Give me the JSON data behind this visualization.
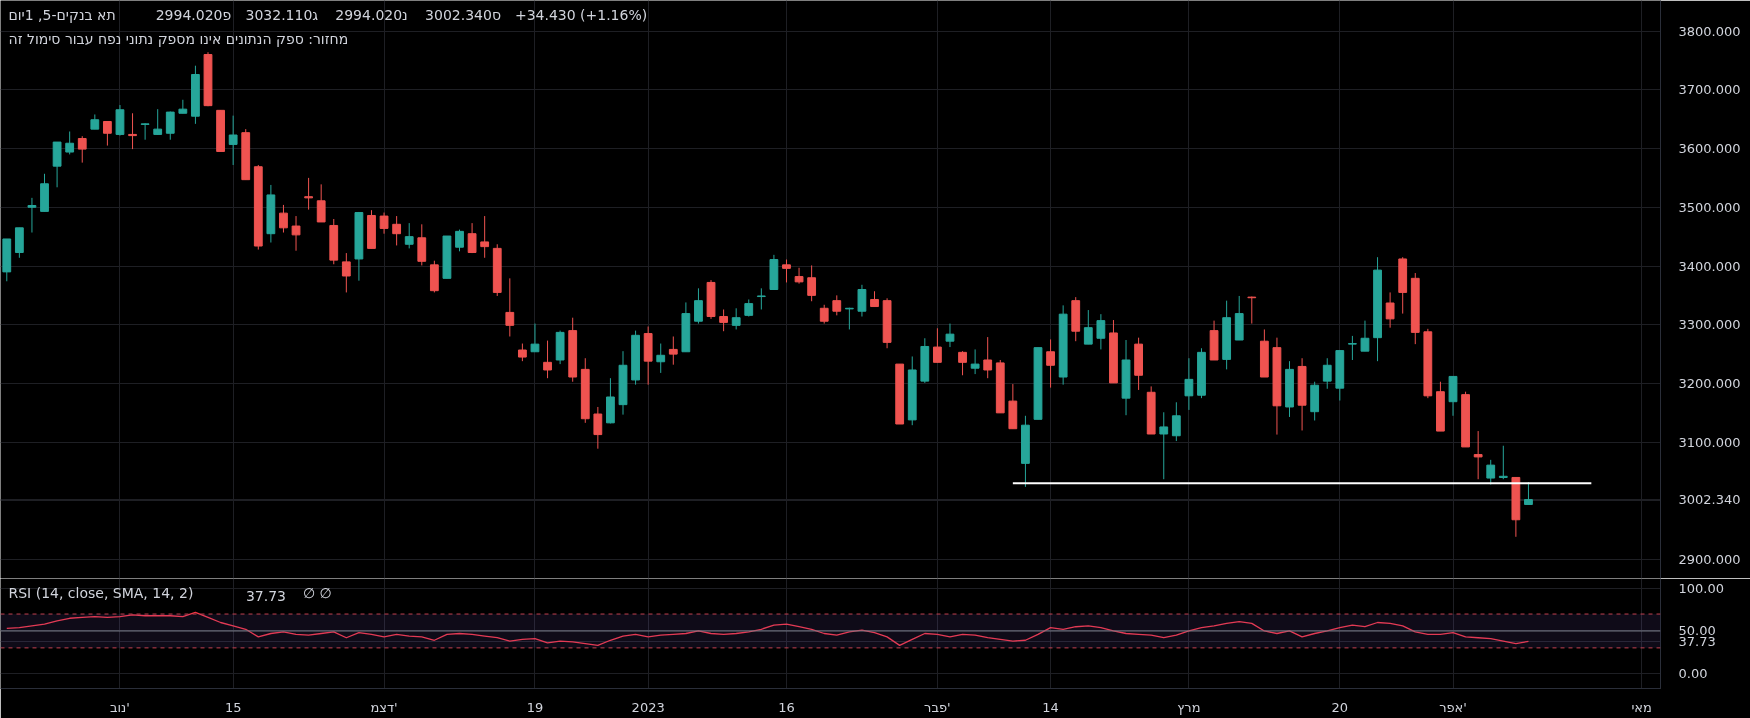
{
  "chart_data": [
    {
      "type": "candlestick",
      "title": "תא בנקים-5, 1יום",
      "annotations": [
        "פ2994.020",
        "ג3032.110",
        "נ2994.020",
        "ס3002.340",
        "+34.430 (+1.16%)",
        "מחזור: ספק הנתונים אינו מספק נתוני נפח עבור סימול זה"
      ],
      "categories": [
        null,
        null,
        null,
        null,
        null,
        null,
        null,
        null,
        null,
        null,
        null,
        null,
        null,
        null,
        null,
        null,
        null,
        null,
        null,
        null,
        null,
        null,
        null,
        null,
        null,
        null,
        null,
        null,
        null,
        null,
        null,
        null,
        null,
        null,
        null,
        null,
        null,
        null,
        null,
        null,
        null,
        null,
        null,
        null,
        null,
        null,
        null,
        null,
        null,
        null,
        null,
        null,
        null,
        null,
        null,
        null,
        null,
        null,
        null,
        null,
        null,
        null,
        null,
        null,
        null,
        null,
        null,
        null,
        null,
        null,
        null,
        null,
        null,
        null,
        null,
        null,
        null,
        null,
        null,
        null,
        null,
        null,
        null,
        null,
        null,
        null,
        null,
        null,
        null,
        null,
        null,
        null,
        null,
        null,
        null,
        null,
        null,
        null,
        null,
        null,
        null,
        null,
        null,
        null,
        null,
        null,
        null,
        null,
        null,
        null,
        null,
        null,
        null,
        null,
        null,
        null,
        null,
        null,
        null,
        null,
        null,
        null,
        null,
        null,
        null,
        null,
        null,
        null,
        null,
        null,
        null,
        null
      ],
      "ohlc": [
        [
          3390,
          3446,
          3374,
          3446
        ],
        [
          3423,
          3465,
          3414,
          3465
        ],
        [
          3500,
          3516,
          3457,
          3503
        ],
        [
          3493,
          3557,
          3493,
          3540
        ],
        [
          3570,
          3611,
          3534,
          3611
        ],
        [
          3594,
          3629,
          3590,
          3609
        ],
        [
          3617,
          3621,
          3576,
          3599
        ],
        [
          3633,
          3658,
          3633,
          3649
        ],
        [
          3646,
          3646,
          3605,
          3626
        ],
        [
          3624,
          3674,
          3622,
          3666
        ],
        [
          3624,
          3660,
          3599,
          3622
        ],
        [
          3641,
          3643,
          3615,
          3642
        ],
        [
          3624,
          3667,
          3623,
          3633
        ],
        [
          3626,
          3663,
          3615,
          3662
        ],
        [
          3660,
          3683,
          3660,
          3667
        ],
        [
          3655,
          3741,
          3642,
          3726
        ],
        [
          3760,
          3764,
          3672,
          3673
        ],
        [
          3665,
          3665,
          3595,
          3595
        ],
        [
          3607,
          3656,
          3572,
          3623
        ],
        [
          3627,
          3633,
          3547,
          3547
        ],
        [
          3569,
          3572,
          3428,
          3434
        ],
        [
          3455,
          3538,
          3440,
          3521
        ],
        [
          3490,
          3504,
          3457,
          3465
        ],
        [
          3468,
          3485,
          3426,
          3453
        ],
        [
          3518,
          3550,
          3496,
          3516
        ],
        [
          3511,
          3539,
          3475,
          3475
        ],
        [
          3469,
          3480,
          3403,
          3410
        ],
        [
          3407,
          3422,
          3355,
          3383
        ],
        [
          3412,
          3492,
          3375,
          3491
        ],
        [
          3486,
          3495,
          3430,
          3430
        ],
        [
          3485,
          3491,
          3455,
          3464
        ],
        [
          3471,
          3485,
          3435,
          3455
        ],
        [
          3437,
          3473,
          3430,
          3450
        ],
        [
          3448,
          3471,
          3401,
          3408
        ],
        [
          3402,
          3409,
          3355,
          3358
        ],
        [
          3379,
          3451,
          3379,
          3451
        ],
        [
          3432,
          3462,
          3425,
          3459
        ],
        [
          3455,
          3473,
          3422,
          3423
        ],
        [
          3441,
          3485,
          3414,
          3433
        ],
        [
          3430,
          3437,
          3349,
          3355
        ],
        [
          3321,
          3379,
          3280,
          3299
        ],
        [
          3257,
          3268,
          3238,
          3245
        ],
        [
          3254,
          3302,
          3254,
          3267
        ],
        [
          3236,
          3273,
          3209,
          3223
        ],
        [
          3240,
          3290,
          3233,
          3287
        ],
        [
          3290,
          3312,
          3203,
          3211
        ],
        [
          3224,
          3243,
          3133,
          3140
        ],
        [
          3148,
          3160,
          3089,
          3113
        ],
        [
          3133,
          3209,
          3132,
          3177
        ],
        [
          3164,
          3255,
          3147,
          3231
        ],
        [
          3206,
          3290,
          3198,
          3282
        ],
        [
          3285,
          3297,
          3198,
          3238
        ],
        [
          3237,
          3268,
          3218,
          3248
        ],
        [
          3258,
          3280,
          3232,
          3250
        ],
        [
          3254,
          3338,
          3254,
          3319
        ],
        [
          3306,
          3362,
          3302,
          3341
        ],
        [
          3372,
          3376,
          3310,
          3314
        ],
        [
          3314,
          3326,
          3289,
          3304
        ],
        [
          3299,
          3328,
          3292,
          3312
        ],
        [
          3316,
          3343,
          3314,
          3336
        ],
        [
          3348,
          3362,
          3326,
          3349
        ],
        [
          3360,
          3419,
          3360,
          3411
        ],
        [
          3402,
          3411,
          3372,
          3396
        ],
        [
          3382,
          3397,
          3370,
          3373
        ],
        [
          3380,
          3401,
          3340,
          3350
        ],
        [
          3328,
          3334,
          3302,
          3306
        ],
        [
          3341,
          3350,
          3316,
          3323
        ],
        [
          3327,
          3329,
          3292,
          3328
        ],
        [
          3323,
          3368,
          3314,
          3360
        ],
        [
          3343,
          3357,
          3331,
          3331
        ],
        [
          3341,
          3345,
          3260,
          3270
        ],
        [
          3233,
          3233,
          3131,
          3131
        ],
        [
          3138,
          3246,
          3129,
          3223
        ],
        [
          3204,
          3277,
          3201,
          3263
        ],
        [
          3262,
          3294,
          3236,
          3236
        ],
        [
          3272,
          3302,
          3262,
          3284
        ],
        [
          3253,
          3255,
          3214,
          3236
        ],
        [
          3226,
          3258,
          3216,
          3233
        ],
        [
          3240,
          3279,
          3209,
          3223
        ],
        [
          3235,
          3240,
          3150,
          3150
        ],
        [
          3170,
          3199,
          3123,
          3123
        ],
        [
          3064,
          3145,
          3024,
          3129
        ],
        [
          3139,
          3261,
          3139,
          3261
        ],
        [
          3254,
          3275,
          3193,
          3231
        ],
        [
          3211,
          3333,
          3198,
          3318
        ],
        [
          3341,
          3347,
          3272,
          3289
        ],
        [
          3267,
          3325,
          3267,
          3295
        ],
        [
          3277,
          3318,
          3258,
          3307
        ],
        [
          3286,
          3308,
          3201,
          3201
        ],
        [
          3175,
          3274,
          3146,
          3240
        ],
        [
          3267,
          3278,
          3189,
          3214
        ],
        [
          3185,
          3195,
          3114,
          3114
        ],
        [
          3114,
          3151,
          3037,
          3126
        ],
        [
          3111,
          3168,
          3102,
          3145
        ],
        [
          3179,
          3243,
          3155,
          3207
        ],
        [
          3180,
          3260,
          3175,
          3253
        ],
        [
          3290,
          3307,
          3240,
          3240
        ],
        [
          3241,
          3341,
          3224,
          3312
        ],
        [
          3274,
          3349,
          3274,
          3319
        ],
        [
          3347,
          3348,
          3302,
          3346
        ],
        [
          3272,
          3292,
          3211,
          3211
        ],
        [
          3261,
          3278,
          3113,
          3162
        ],
        [
          3160,
          3238,
          3143,
          3224
        ],
        [
          3229,
          3243,
          3120,
          3163
        ],
        [
          3152,
          3203,
          3137,
          3197
        ],
        [
          3204,
          3243,
          3191,
          3231
        ],
        [
          3192,
          3256,
          3171,
          3256
        ],
        [
          3267,
          3281,
          3240,
          3268
        ],
        [
          3255,
          3307,
          3255,
          3277
        ],
        [
          3278,
          3415,
          3238,
          3393
        ],
        [
          3337,
          3355,
          3295,
          3310
        ],
        [
          3412,
          3415,
          3319,
          3355
        ],
        [
          3379,
          3388,
          3267,
          3287
        ],
        [
          3288,
          3293,
          3175,
          3179
        ],
        [
          3186,
          3203,
          3119,
          3119
        ],
        [
          3169,
          3212,
          3145,
          3212
        ],
        [
          3181,
          3186,
          3092,
          3092
        ],
        [
          3079,
          3119,
          3037,
          3075
        ],
        [
          3039,
          3070,
          3028,
          3061
        ],
        [
          3040,
          3094,
          3037,
          3042
        ],
        [
          3040,
          3040,
          2939,
          2968
        ],
        [
          2994.02,
          3032.11,
          2994.02,
          3002.34
        ],
        null,
        null,
        null,
        null,
        null,
        null,
        null,
        null,
        null,
        null
      ],
      "colors": [
        "#26a69a",
        "#26a69a",
        "#26a69a",
        "#26a69a",
        "#26a69a",
        "#26a69a",
        "#ef5350",
        "#26a69a",
        "#ef5350",
        "#26a69a",
        "#ef5350",
        "#26a69a",
        "#26a69a",
        "#26a69a",
        "#26a69a",
        "#26a69a",
        "#ef5350",
        "#ef5350",
        "#26a69a",
        "#ef5350",
        "#ef5350",
        "#26a69a",
        "#ef5350",
        "#ef5350",
        "#ef5350",
        "#ef5350",
        "#ef5350",
        "#ef5350",
        "#26a69a",
        "#ef5350",
        "#ef5350",
        "#ef5350",
        "#26a69a",
        "#ef5350",
        "#ef5350",
        "#26a69a",
        "#26a69a",
        "#ef5350",
        "#ef5350",
        "#ef5350",
        "#ef5350",
        "#ef5350",
        "#26a69a",
        "#ef5350",
        "#26a69a",
        "#ef5350",
        "#ef5350",
        "#ef5350",
        "#26a69a",
        "#26a69a",
        "#26a69a",
        "#ef5350",
        "#26a69a",
        "#ef5350",
        "#26a69a",
        "#26a69a",
        "#ef5350",
        "#ef5350",
        "#26a69a",
        "#26a69a",
        "#26a69a",
        "#26a69a",
        "#ef5350",
        "#ef5350",
        "#ef5350",
        "#ef5350",
        "#ef5350",
        "#26a69a",
        "#26a69a",
        "#ef5350",
        "#ef5350",
        "#ef5350",
        "#26a69a",
        "#26a69a",
        "#ef5350",
        "#26a69a",
        "#ef5350",
        "#26a69a",
        "#ef5350",
        "#ef5350",
        "#ef5350",
        "#26a69a",
        "#26a69a",
        "#ef5350",
        "#26a69a",
        "#ef5350",
        "#26a69a",
        "#26a69a",
        "#ef5350",
        "#26a69a",
        "#ef5350",
        "#ef5350",
        "#26a69a",
        "#26a69a",
        "#26a69a",
        "#26a69a",
        "#ef5350",
        "#26a69a",
        "#26a69a",
        "#ef5350",
        "#ef5350",
        "#ef5350",
        "#26a69a",
        "#ef5350",
        "#26a69a",
        "#26a69a",
        "#26a69a",
        "#26a69a",
        "#26a69a",
        "#26a69a",
        "#ef5350",
        "#ef5350",
        "#ef5350",
        "#ef5350",
        "#ef5350",
        "#26a69a",
        "#ef5350",
        "#ef5350",
        "#26a69a",
        "#26a69a",
        "#ef5350",
        "#26a69a",
        null,
        null,
        null,
        null,
        null,
        null,
        null,
        null,
        null,
        null
      ],
      "series": [
        {
          "type": "line",
          "color": "#ffffff",
          "values": [
            null,
            null,
            null,
            null,
            null,
            null,
            null,
            null,
            null,
            null,
            null,
            null,
            null,
            null,
            null,
            null,
            null,
            null,
            null,
            null,
            null,
            null,
            null,
            null,
            null,
            null,
            null,
            null,
            null,
            null,
            null,
            null,
            null,
            null,
            null,
            null,
            null,
            null,
            null,
            null,
            null,
            null,
            null,
            null,
            null,
            null,
            null,
            null,
            null,
            null,
            null,
            null,
            null,
            null,
            null,
            null,
            null,
            null,
            null,
            null,
            null,
            null,
            null,
            null,
            null,
            null,
            null,
            null,
            null,
            null,
            null,
            null,
            null,
            null,
            null,
            null,
            null,
            null,
            null,
            null,
            3030,
            3030,
            3030,
            3030,
            3030,
            3030,
            3030,
            3030,
            3030,
            3030,
            3030,
            3030,
            3030,
            3030,
            3030,
            3030,
            3030,
            3030,
            3030,
            3030,
            3030,
            3030,
            3030,
            3030,
            3030,
            3030,
            3030,
            3030,
            3030,
            3030,
            3030,
            3030,
            3030,
            3030,
            3030,
            3030,
            3030,
            3030,
            3030,
            3030,
            3030,
            3030,
            3030,
            3030,
            3030,
            3030,
            3030,
            null,
            null,
            null,
            null,
            null
          ]
        }
      ],
      "ylim": [
        2868,
        3852
      ],
      "yticks": [
        {
          "value": 2900,
          "label": "2900.000"
        },
        {
          "value": 3000,
          "label": null
        },
        {
          "value": 3002.34,
          "label": "3002.340"
        },
        {
          "value": 3100,
          "label": "3100.000"
        },
        {
          "value": 3200,
          "label": "3200.000"
        },
        {
          "value": 3300,
          "label": "3300.000"
        },
        {
          "value": 3400,
          "label": "3400.000"
        },
        {
          "value": 3500,
          "label": "3500.000"
        },
        {
          "value": 3600,
          "label": "3600.000"
        },
        {
          "value": 3700,
          "label": "3700.000"
        },
        {
          "value": 3800,
          "label": "3800.000"
        }
      ],
      "grid": true,
      "tick_labels": "y"
    },
    {
      "type": "line",
      "title": "RSI (14, close, SMA, 14, 2)",
      "annotations": [
        "37.73",
        "∅ ∅"
      ],
      "categories": [
        null,
        null,
        null,
        null,
        null,
        null,
        null,
        null,
        null,
        "נוב'",
        null,
        null,
        null,
        null,
        null,
        null,
        null,
        null,
        "15",
        null,
        null,
        null,
        null,
        null,
        null,
        null,
        null,
        null,
        null,
        null,
        "דצמ'",
        null,
        null,
        null,
        null,
        null,
        null,
        null,
        null,
        null,
        null,
        null,
        "19",
        null,
        null,
        null,
        null,
        null,
        null,
        null,
        null,
        "2023",
        null,
        null,
        null,
        null,
        null,
        null,
        null,
        null,
        null,
        null,
        "16",
        null,
        null,
        null,
        null,
        null,
        null,
        null,
        null,
        null,
        null,
        null,
        "פבר'",
        null,
        null,
        null,
        null,
        null,
        null,
        null,
        null,
        "14",
        null,
        null,
        null,
        null,
        null,
        null,
        null,
        null,
        null,
        null,
        "מרץ",
        null,
        null,
        null,
        null,
        null,
        null,
        null,
        null,
        null,
        null,
        null,
        "20",
        null,
        null,
        null,
        null,
        null,
        null,
        null,
        null,
        "אפר'",
        null,
        null,
        null,
        null,
        null,
        null,
        null,
        null,
        null,
        null,
        null,
        null,
        null,
        null,
        "מאי",
        null
      ],
      "series": [
        {
          "color": "#f23645",
          "values": [
            53,
            54,
            56,
            58,
            62,
            65,
            66,
            67,
            66,
            67,
            69,
            68,
            68,
            68,
            67,
            72,
            66,
            60,
            56,
            52,
            43,
            47,
            49,
            46,
            45,
            47,
            49,
            42,
            48,
            46,
            43,
            46,
            44,
            43,
            39,
            46,
            47,
            46,
            44,
            42,
            38,
            40,
            41,
            36,
            38,
            37,
            35,
            33,
            39,
            44,
            46,
            43,
            45,
            46,
            47,
            50,
            47,
            46,
            47,
            49,
            52,
            57,
            58,
            55,
            52,
            47,
            45,
            49,
            51,
            48,
            43,
            33,
            40,
            47,
            46,
            43,
            46,
            45,
            42,
            40,
            38,
            39,
            46,
            54,
            52,
            55,
            56,
            54,
            50,
            47,
            46,
            45,
            42,
            45,
            50,
            54,
            56,
            59,
            61,
            59,
            50,
            47,
            50,
            43,
            47,
            50,
            54,
            57,
            55,
            60,
            59,
            56,
            49,
            46,
            46,
            48,
            43,
            42,
            41,
            38,
            35,
            37.73,
            null,
            null,
            null,
            null,
            null,
            null,
            null,
            null,
            null,
            null
          ]
        }
      ],
      "ylim": [
        -18,
        112
      ],
      "yticks": [
        {
          "value": 0,
          "label": "0.00"
        },
        {
          "value": 37.73,
          "label": "37.73"
        },
        {
          "value": 50,
          "label": "50.00"
        },
        {
          "value": 100,
          "label": "100.00"
        }
      ],
      "ref_lines": [
        {
          "axis": "y",
          "value": 70,
          "color": "#c2414f",
          "line_style": "dashed"
        },
        {
          "axis": "y",
          "value": 50,
          "color": "#787b86",
          "line_style": "solid"
        },
        {
          "axis": "y",
          "value": 30,
          "color": "#c2414f",
          "line_style": "dashed"
        }
      ],
      "bands": [
        {
          "axis": "y",
          "from": 30,
          "to": 70,
          "color": "#7e57c2"
        }
      ],
      "grid": true
    }
  ]
}
